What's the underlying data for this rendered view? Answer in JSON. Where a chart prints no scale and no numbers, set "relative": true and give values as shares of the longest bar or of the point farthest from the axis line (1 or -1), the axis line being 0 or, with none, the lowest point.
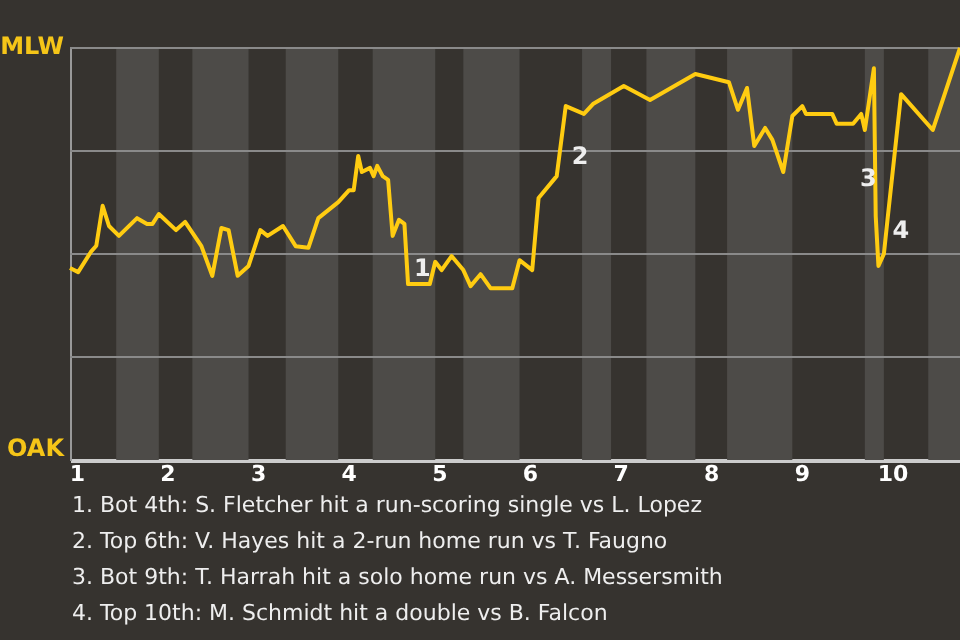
{
  "chart_data": {
    "type": "line",
    "relative": true,
    "x": [
      0.93,
      1.02,
      1.16,
      1.22,
      1.29,
      1.36,
      1.47,
      1.67,
      1.78,
      1.84,
      1.91,
      2.1,
      2.2,
      2.38,
      2.5,
      2.6,
      2.68,
      2.78,
      2.9,
      3.03,
      3.11,
      3.28,
      3.42,
      3.56,
      3.67,
      3.89,
      4.01,
      4.06,
      4.11,
      4.15,
      4.24,
      4.28,
      4.32,
      4.38,
      4.44,
      4.49,
      4.56,
      4.62,
      4.66,
      4.9,
      4.96,
      5.03,
      5.14,
      5.27,
      5.35,
      5.46,
      5.57,
      5.81,
      5.89,
      6.03,
      6.1,
      6.3,
      6.4,
      6.6,
      6.7,
      7.04,
      7.33,
      7.83,
      8.2,
      8.3,
      8.4,
      8.48,
      8.6,
      8.68,
      8.8,
      8.9,
      9.01,
      9.05,
      9.34,
      9.39,
      9.57,
      9.66,
      9.7,
      9.8,
      9.82,
      9.85,
      9.91,
      9.95,
      10.1,
      10.45,
      10.75
    ],
    "series": [
      {
        "color": "#ffcc11",
        "values": [
          0.466,
          0.456,
          0.505,
          0.52,
          0.617,
          0.568,
          0.544,
          0.587,
          0.573,
          0.573,
          0.597,
          0.558,
          0.578,
          0.519,
          0.447,
          0.563,
          0.558,
          0.447,
          0.471,
          0.558,
          0.544,
          0.568,
          0.519,
          0.515,
          0.587,
          0.626,
          0.655,
          0.655,
          0.738,
          0.699,
          0.709,
          0.689,
          0.714,
          0.689,
          0.68,
          0.544,
          0.583,
          0.573,
          0.427,
          0.427,
          0.481,
          0.461,
          0.495,
          0.461,
          0.422,
          0.451,
          0.417,
          0.417,
          0.485,
          0.461,
          0.636,
          0.689,
          0.859,
          0.84,
          0.864,
          0.908,
          0.874,
          0.937,
          0.917,
          0.85,
          0.903,
          0.762,
          0.806,
          0.777,
          0.699,
          0.835,
          0.859,
          0.84,
          0.84,
          0.816,
          0.816,
          0.84,
          0.801,
          0.951,
          0.592,
          0.471,
          0.5,
          0.583,
          0.888,
          0.801,
          1
        ]
      }
    ],
    "xlim": [
      0.93,
      10.75
    ],
    "xticks": [
      1,
      2,
      3,
      4,
      5,
      6,
      7,
      8,
      9,
      10
    ],
    "marker": "none",
    "line_style": "solid",
    "ref_lines": [
      {
        "axis": "y",
        "value": 0.25,
        "color": "#8a8a8a"
      },
      {
        "axis": "y",
        "value": 0.5,
        "color": "#8a8a8a"
      },
      {
        "axis": "y",
        "value": 0.75,
        "color": "#8a8a8a"
      },
      {
        "axis": "y",
        "value": 1,
        "color": "#8a8a8a"
      }
    ],
    "bands": [
      {
        "axis": "x",
        "from": 1.44,
        "to": 1.91,
        "color": "#4d4b48"
      },
      {
        "axis": "x",
        "from": 2.28,
        "to": 2.9,
        "color": "#4d4b48"
      },
      {
        "axis": "x",
        "from": 3.31,
        "to": 3.89,
        "color": "#4d4b48"
      },
      {
        "axis": "x",
        "from": 4.27,
        "to": 4.96,
        "color": "#4d4b48"
      },
      {
        "axis": "x",
        "from": 5.27,
        "to": 5.89,
        "color": "#4d4b48"
      },
      {
        "axis": "x",
        "from": 6.58,
        "to": 6.9,
        "color": "#4d4b48"
      },
      {
        "axis": "x",
        "from": 7.29,
        "to": 7.83,
        "color": "#4d4b48"
      },
      {
        "axis": "x",
        "from": 8.18,
        "to": 8.9,
        "color": "#4d4b48"
      },
      {
        "axis": "x",
        "from": 9.7,
        "to": 9.91,
        "color": "#4d4b48"
      },
      {
        "axis": "x",
        "from": 10.4,
        "to": 10.75,
        "color": "#4d4b48"
      }
    ],
    "annotations": [
      {
        "text": "1",
        "x": 4.66,
        "y": 0.427
      },
      {
        "text": "2",
        "x": 6.4,
        "y": 0.7
      },
      {
        "text": "3",
        "x": 9.58,
        "y": 0.646
      },
      {
        "text": "4",
        "x": 9.94,
        "y": 0.52
      },
      "MLW",
      "OAK",
      "1. Bot 4th: S. Fletcher hit a run-scoring single vs L. Lopez",
      "2. Top 6th: V. Hayes hit a 2-run home run vs T. Faugno",
      "3. Bot 9th: T. Harrah hit a solo home run vs A. Messersmith",
      "4. Top 10th: M. Schmidt hit a double vs B. Falcon"
    ]
  }
}
